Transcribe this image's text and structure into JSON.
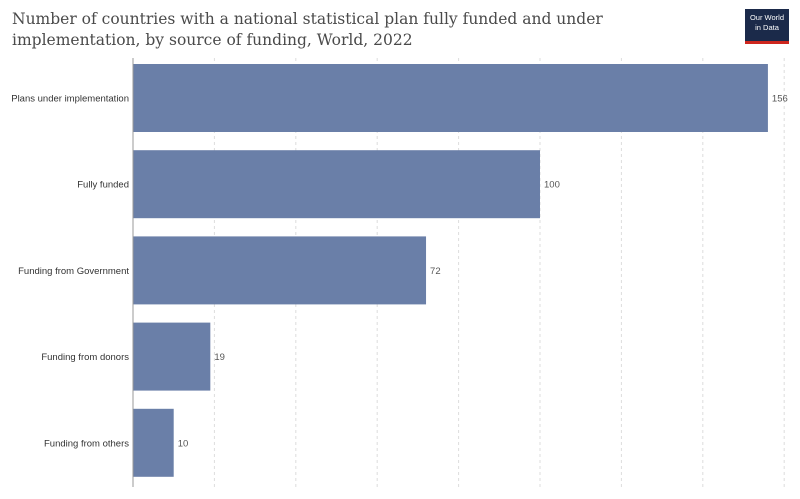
{
  "title": "Number of countries with a national statistical plan fully funded and under implementation, by source of funding, World, 2022",
  "logo": {
    "line1": "Our World",
    "line2": "in Data"
  },
  "colors": {
    "bar": "#6a7fa8",
    "grid": "#dddddd",
    "axis": "#999999"
  },
  "chart_data": {
    "type": "bar",
    "orientation": "horizontal",
    "categories": [
      "Plans under implementation",
      "Fully funded",
      "Funding from Government",
      "Funding from donors",
      "Funding from others"
    ],
    "values": [
      156,
      100,
      72,
      19,
      10
    ],
    "xlim": [
      0,
      160
    ],
    "grid": true
  }
}
